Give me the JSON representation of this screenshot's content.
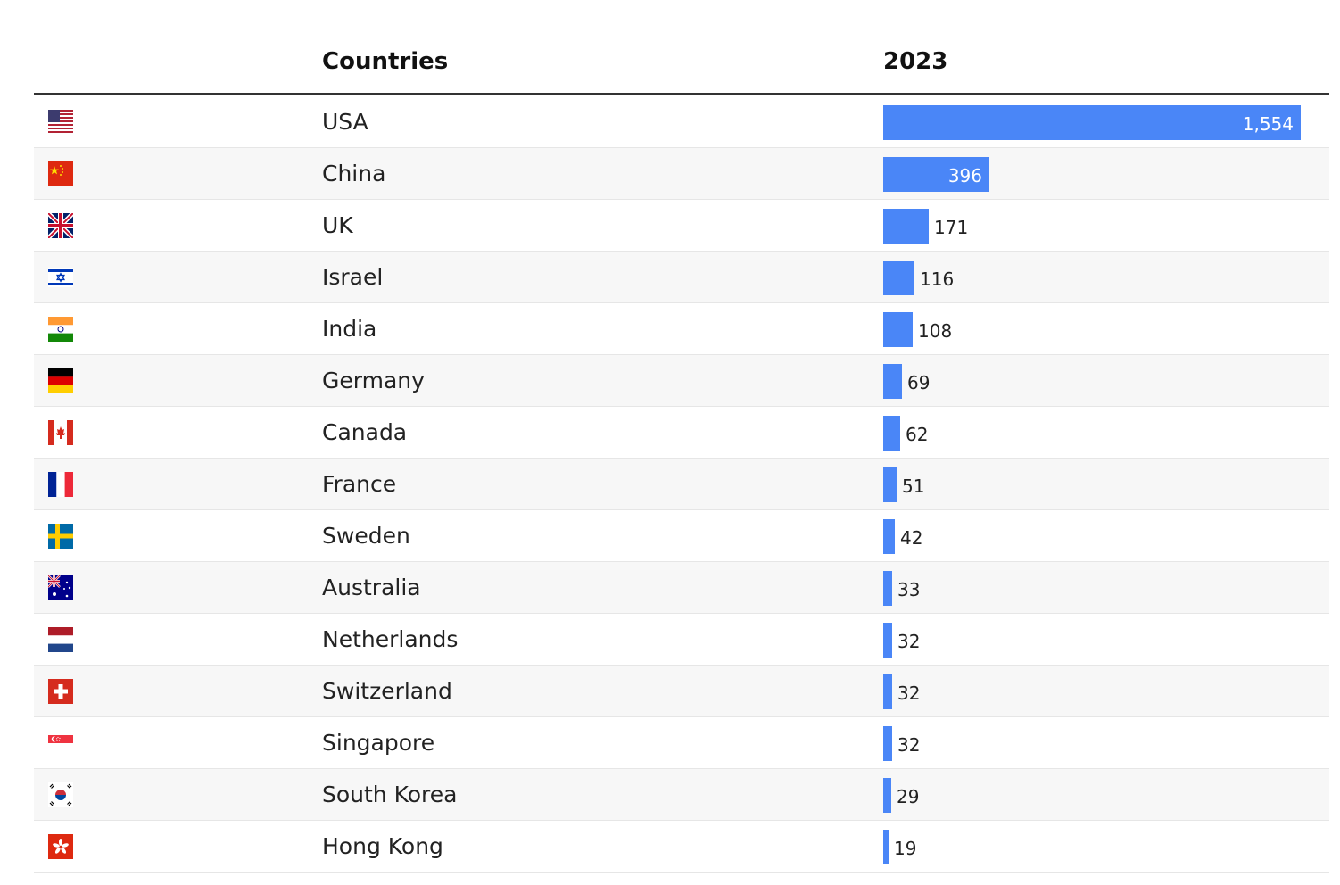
{
  "header": {
    "country_label": "Countries",
    "year_label": "2023"
  },
  "colors": {
    "bar": "#4a86f7",
    "row_alt": "#f7f7f7"
  },
  "chart_data": {
    "type": "bar",
    "orientation": "horizontal",
    "column_label": "2023",
    "categories": [
      "USA",
      "China",
      "UK",
      "Israel",
      "India",
      "Germany",
      "Canada",
      "France",
      "Sweden",
      "Australia",
      "Netherlands",
      "Switzerland",
      "Singapore",
      "South Korea",
      "Hong Kong"
    ],
    "values": [
      1554,
      396,
      171,
      116,
      108,
      69,
      62,
      51,
      42,
      33,
      32,
      32,
      32,
      29,
      19
    ],
    "value_labels": [
      "1,554",
      "396",
      "171",
      "116",
      "108",
      "69",
      "62",
      "51",
      "42",
      "33",
      "32",
      "32",
      "32",
      "29",
      "19"
    ],
    "flag_icons": [
      "us-flag-icon",
      "cn-flag-icon",
      "gb-flag-icon",
      "il-flag-icon",
      "in-flag-icon",
      "de-flag-icon",
      "ca-flag-icon",
      "fr-flag-icon",
      "se-flag-icon",
      "au-flag-icon",
      "nl-flag-icon",
      "ch-flag-icon",
      "sg-flag-icon",
      "kr-flag-icon",
      "hk-flag-icon"
    ]
  }
}
